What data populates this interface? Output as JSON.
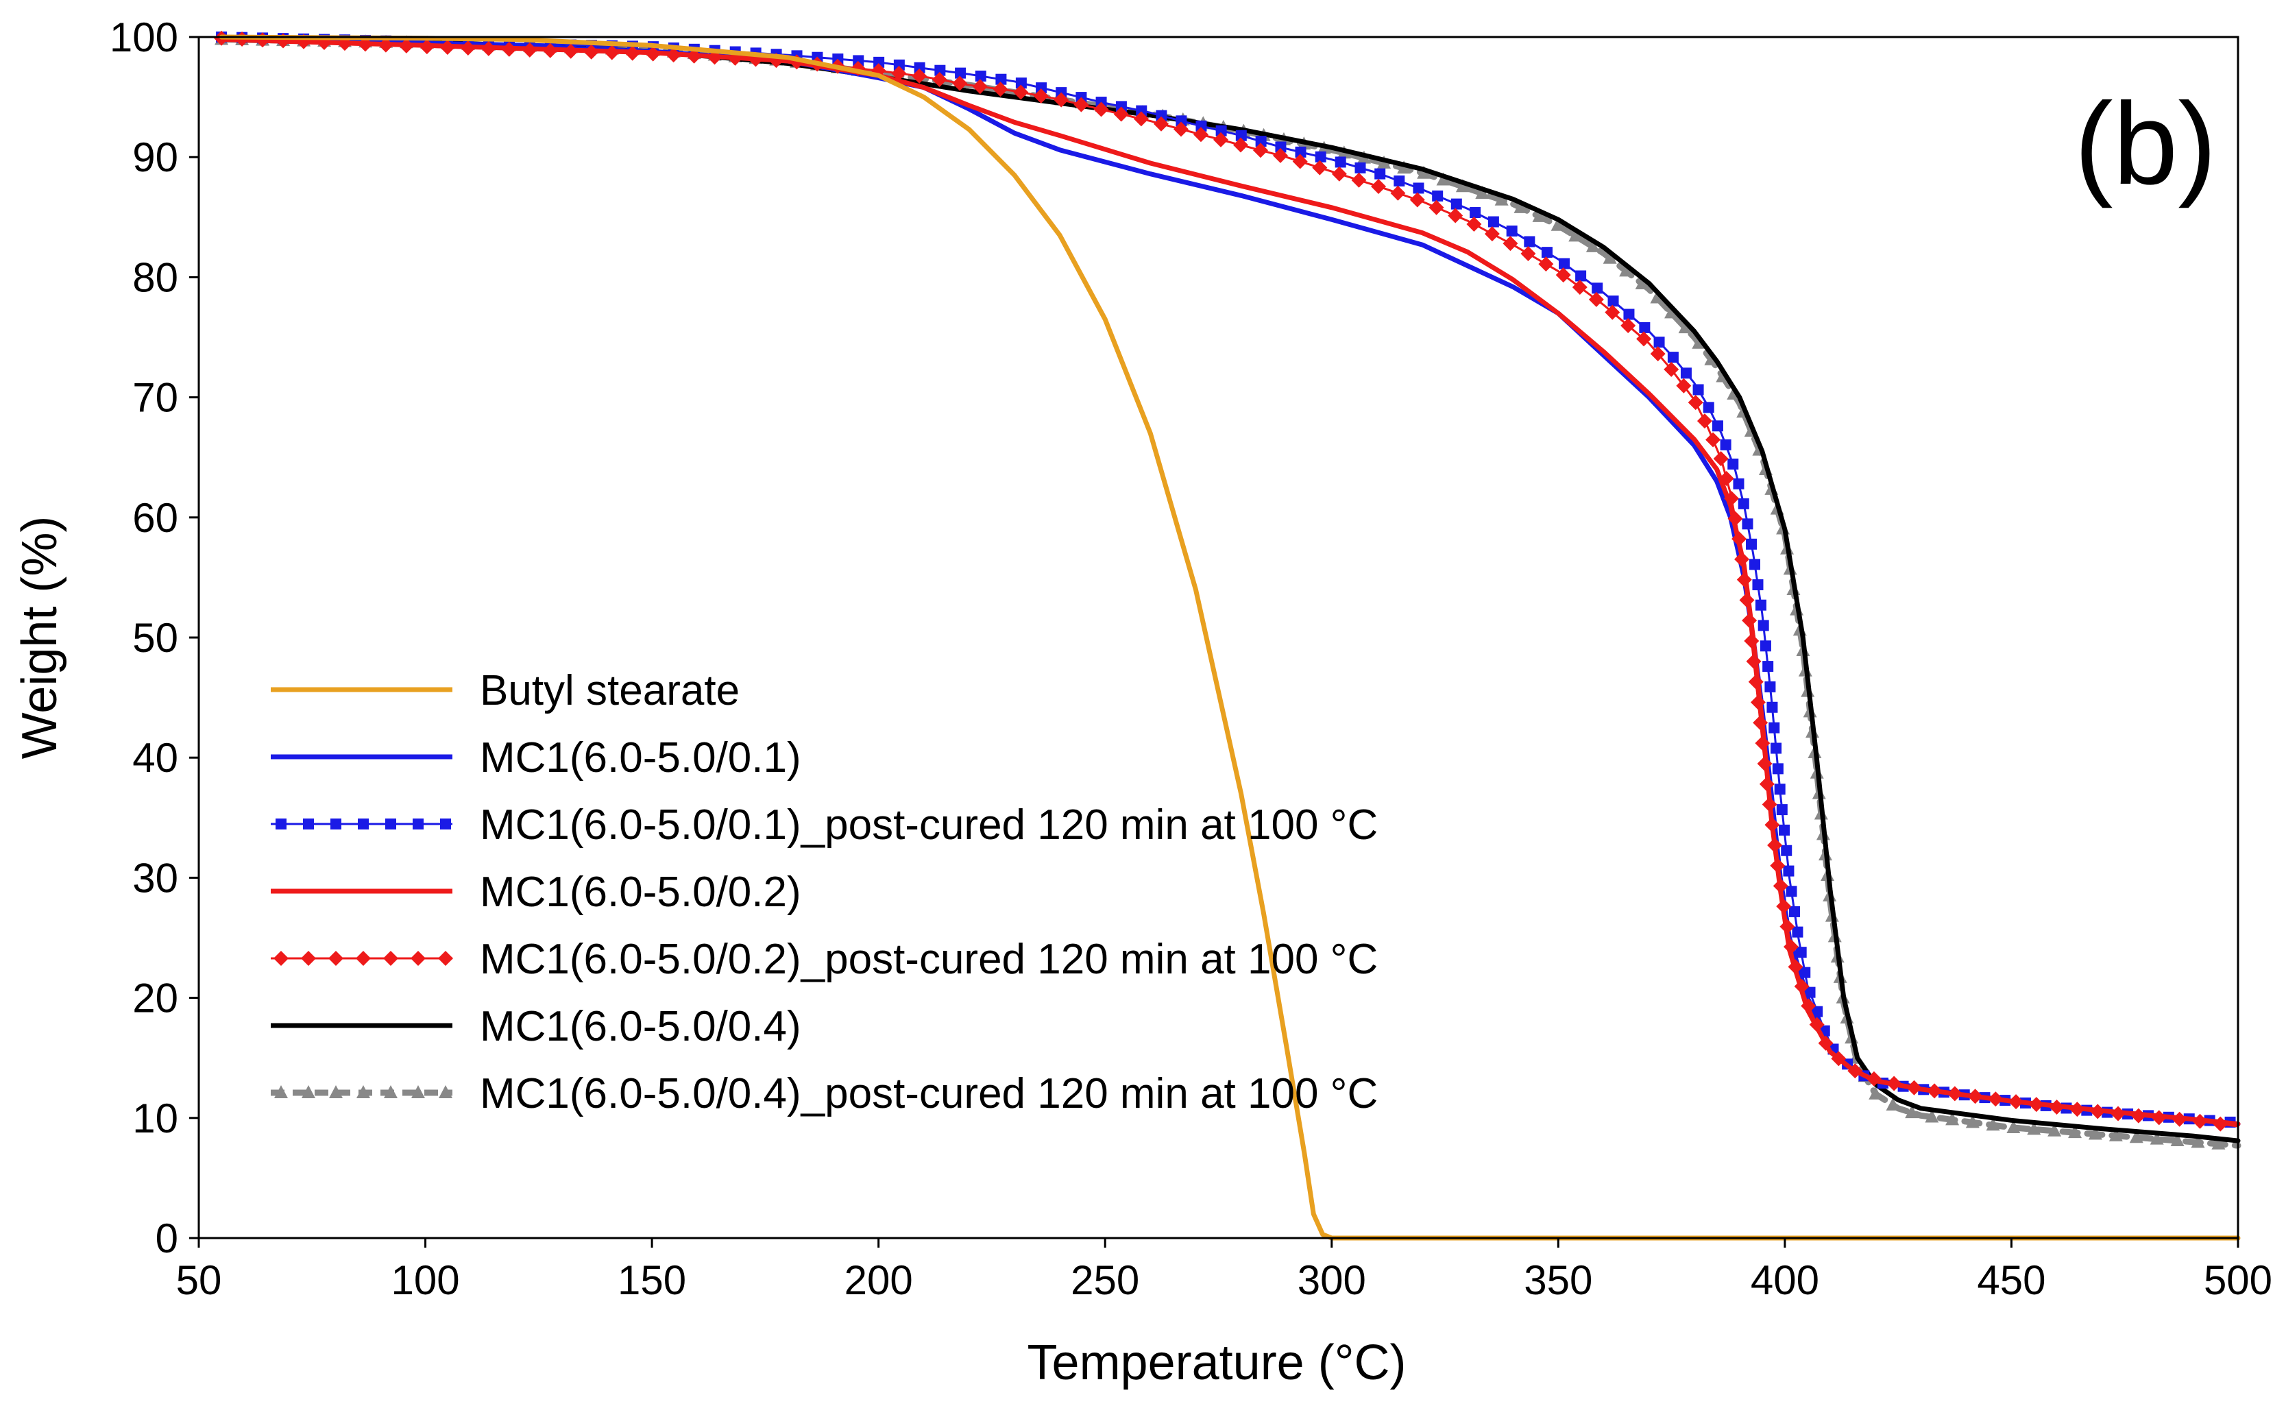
{
  "chart_data": {
    "type": "line",
    "title": "",
    "panel_label": "(b)",
    "xlabel": "Temperature (°C)",
    "ylabel": "Weight (%)",
    "xlim": [
      50,
      500
    ],
    "ylim": [
      0,
      100
    ],
    "xticks": [
      50,
      100,
      150,
      200,
      250,
      300,
      350,
      400,
      450,
      500
    ],
    "yticks": [
      0,
      10,
      20,
      30,
      40,
      50,
      60,
      70,
      80,
      90,
      100
    ],
    "grid": false,
    "legend_position": "lower-left",
    "series": [
      {
        "name": "Butyl stearate",
        "color": "#E8A020",
        "style": "solid",
        "marker": "none",
        "points": [
          [
            55,
            100
          ],
          [
            100,
            99.9
          ],
          [
            120,
            99.8
          ],
          [
            150,
            99.3
          ],
          [
            180,
            98.3
          ],
          [
            200,
            96.8
          ],
          [
            210,
            95
          ],
          [
            220,
            92.3
          ],
          [
            230,
            88.5
          ],
          [
            240,
            83.5
          ],
          [
            250,
            76.5
          ],
          [
            260,
            67
          ],
          [
            270,
            54
          ],
          [
            280,
            37
          ],
          [
            285,
            27
          ],
          [
            290,
            16
          ],
          [
            294,
            7
          ],
          [
            296,
            2
          ],
          [
            298,
            0.3
          ],
          [
            300,
            0
          ],
          [
            350,
            0
          ],
          [
            400,
            0
          ],
          [
            450,
            0
          ],
          [
            500,
            0
          ]
        ]
      },
      {
        "name": "MC1(6.0-5.0/0.1)",
        "color": "#1A1AE6",
        "style": "solid",
        "marker": "none",
        "points": [
          [
            55,
            99.9
          ],
          [
            100,
            99.5
          ],
          [
            150,
            98.8
          ],
          [
            180,
            98
          ],
          [
            200,
            96.6
          ],
          [
            210,
            95.8
          ],
          [
            220,
            94
          ],
          [
            230,
            92
          ],
          [
            240,
            90.6
          ],
          [
            260,
            88.6
          ],
          [
            280,
            86.8
          ],
          [
            300,
            84.8
          ],
          [
            320,
            82.7
          ],
          [
            340,
            79.2
          ],
          [
            350,
            77
          ],
          [
            360,
            73.5
          ],
          [
            370,
            70
          ],
          [
            380,
            66
          ],
          [
            385,
            63
          ],
          [
            388,
            60
          ],
          [
            391,
            55
          ],
          [
            393,
            50
          ],
          [
            395,
            44
          ],
          [
            397,
            37
          ],
          [
            399,
            30
          ],
          [
            401,
            25
          ],
          [
            405,
            20
          ],
          [
            410,
            16
          ],
          [
            415,
            14
          ],
          [
            420,
            13.2
          ],
          [
            430,
            12.5
          ],
          [
            450,
            11.4
          ],
          [
            470,
            10.6
          ],
          [
            490,
            9.9
          ],
          [
            500,
            9.5
          ]
        ]
      },
      {
        "name": "MC1(6.0-5.0/0.1)_post-cured 120 min at 100 °C",
        "color": "#1A1AE6",
        "style": "thin",
        "marker": "square",
        "points": [
          [
            55,
            100
          ],
          [
            100,
            99.6
          ],
          [
            150,
            99.2
          ],
          [
            180,
            98.5
          ],
          [
            200,
            97.9
          ],
          [
            210,
            97.4
          ],
          [
            220,
            96.9
          ],
          [
            230,
            96.3
          ],
          [
            240,
            95.4
          ],
          [
            250,
            94.5
          ],
          [
            260,
            93.7
          ],
          [
            270,
            92.7
          ],
          [
            280,
            91.8
          ],
          [
            290,
            90.7
          ],
          [
            300,
            89.8
          ],
          [
            310,
            88.7
          ],
          [
            320,
            87.3
          ],
          [
            330,
            85.7
          ],
          [
            340,
            83.8
          ],
          [
            350,
            81.5
          ],
          [
            360,
            78.7
          ],
          [
            370,
            75.5
          ],
          [
            375,
            73.5
          ],
          [
            380,
            71.2
          ],
          [
            383,
            69.3
          ],
          [
            386,
            67
          ],
          [
            389,
            64
          ],
          [
            391,
            61
          ],
          [
            393,
            57
          ],
          [
            395,
            52
          ],
          [
            397,
            45
          ],
          [
            399,
            37
          ],
          [
            401,
            30
          ],
          [
            403,
            25
          ],
          [
            405,
            21
          ],
          [
            408,
            18
          ],
          [
            410,
            16
          ],
          [
            415,
            14
          ],
          [
            420,
            13
          ],
          [
            430,
            12.4
          ],
          [
            440,
            11.9
          ],
          [
            450,
            11.4
          ],
          [
            460,
            10.9
          ],
          [
            470,
            10.5
          ],
          [
            480,
            10.2
          ],
          [
            490,
            9.9
          ],
          [
            500,
            9.6
          ]
        ]
      },
      {
        "name": "MC1(6.0-5.0/0.2)",
        "color": "#EE1A1A",
        "style": "solid",
        "marker": "none",
        "points": [
          [
            55,
            99.8
          ],
          [
            100,
            99.3
          ],
          [
            150,
            98.7
          ],
          [
            180,
            98
          ],
          [
            200,
            96.8
          ],
          [
            210,
            95.8
          ],
          [
            220,
            94.3
          ],
          [
            230,
            92.9
          ],
          [
            240,
            91.8
          ],
          [
            260,
            89.5
          ],
          [
            280,
            87.6
          ],
          [
            300,
            85.8
          ],
          [
            320,
            83.7
          ],
          [
            330,
            82.1
          ],
          [
            340,
            79.8
          ],
          [
            350,
            77
          ],
          [
            360,
            73.8
          ],
          [
            370,
            70.3
          ],
          [
            380,
            66.5
          ],
          [
            385,
            64
          ],
          [
            388,
            61
          ],
          [
            391,
            56
          ],
          [
            393,
            50
          ],
          [
            395,
            43
          ],
          [
            397,
            35
          ],
          [
            399,
            29
          ],
          [
            401,
            24
          ],
          [
            405,
            19
          ],
          [
            410,
            15.5
          ],
          [
            415,
            14
          ],
          [
            420,
            13.1
          ],
          [
            430,
            12.4
          ],
          [
            450,
            11.4
          ],
          [
            470,
            10.6
          ],
          [
            490,
            9.9
          ],
          [
            500,
            9.5
          ]
        ]
      },
      {
        "name": "MC1(6.0-5.0/0.2)_post-cured 120 min at 100 °C",
        "color": "#EE1A1A",
        "style": "thin",
        "marker": "diamond",
        "points": [
          [
            55,
            99.9
          ],
          [
            100,
            99.2
          ],
          [
            150,
            98.6
          ],
          [
            180,
            98
          ],
          [
            200,
            97.2
          ],
          [
            210,
            96.7
          ],
          [
            220,
            96
          ],
          [
            230,
            95.5
          ],
          [
            240,
            94.8
          ],
          [
            250,
            93.9
          ],
          [
            260,
            93
          ],
          [
            270,
            92
          ],
          [
            280,
            91
          ],
          [
            290,
            90
          ],
          [
            300,
            88.8
          ],
          [
            310,
            87.6
          ],
          [
            320,
            86.3
          ],
          [
            330,
            84.7
          ],
          [
            340,
            82.7
          ],
          [
            350,
            80.5
          ],
          [
            360,
            77.7
          ],
          [
            370,
            74.5
          ],
          [
            375,
            72.3
          ],
          [
            380,
            69.8
          ],
          [
            383,
            67.5
          ],
          [
            386,
            64.8
          ],
          [
            388,
            62
          ],
          [
            390,
            58
          ],
          [
            392,
            52
          ],
          [
            394,
            45
          ],
          [
            396,
            38
          ],
          [
            398,
            32
          ],
          [
            400,
            27
          ],
          [
            402,
            23
          ],
          [
            405,
            19.5
          ],
          [
            408,
            17
          ],
          [
            410,
            15.5
          ],
          [
            415,
            14
          ],
          [
            420,
            13.2
          ],
          [
            430,
            12.4
          ],
          [
            440,
            11.9
          ],
          [
            450,
            11.4
          ],
          [
            460,
            10.9
          ],
          [
            470,
            10.5
          ],
          [
            480,
            10.1
          ],
          [
            490,
            9.8
          ],
          [
            500,
            9.3
          ]
        ]
      },
      {
        "name": "MC1(6.0-5.0/0.4)",
        "color": "#000000",
        "style": "solid",
        "marker": "none",
        "points": [
          [
            55,
            99.9
          ],
          [
            100,
            99.6
          ],
          [
            150,
            98.8
          ],
          [
            180,
            97.8
          ],
          [
            200,
            96.7
          ],
          [
            220,
            95.5
          ],
          [
            240,
            94.5
          ],
          [
            260,
            93.5
          ],
          [
            280,
            92.3
          ],
          [
            300,
            90.8
          ],
          [
            320,
            89
          ],
          [
            340,
            86.5
          ],
          [
            350,
            84.8
          ],
          [
            360,
            82.5
          ],
          [
            370,
            79.5
          ],
          [
            380,
            75.5
          ],
          [
            385,
            73
          ],
          [
            390,
            70
          ],
          [
            395,
            65.5
          ],
          [
            400,
            59
          ],
          [
            404,
            50
          ],
          [
            407,
            40
          ],
          [
            410,
            29
          ],
          [
            413,
            20
          ],
          [
            416,
            15
          ],
          [
            420,
            12.8
          ],
          [
            425,
            11.5
          ],
          [
            430,
            10.8
          ],
          [
            450,
            9.8
          ],
          [
            470,
            9.1
          ],
          [
            490,
            8.5
          ],
          [
            500,
            8.1
          ]
        ]
      },
      {
        "name": "MC1(6.0-5.0/0.4)_post-cured 120 min at 100 °C",
        "color": "#888888",
        "style": "dashed",
        "marker": "triangle",
        "points": [
          [
            55,
            99.8
          ],
          [
            100,
            99.5
          ],
          [
            150,
            98.9
          ],
          [
            180,
            98
          ],
          [
            200,
            97
          ],
          [
            220,
            96
          ],
          [
            240,
            94.8
          ],
          [
            260,
            93.6
          ],
          [
            280,
            92.2
          ],
          [
            300,
            90.6
          ],
          [
            320,
            88.7
          ],
          [
            340,
            86.1
          ],
          [
            350,
            84.3
          ],
          [
            360,
            82
          ],
          [
            370,
            79
          ],
          [
            380,
            75
          ],
          [
            385,
            72.5
          ],
          [
            390,
            69.5
          ],
          [
            395,
            65
          ],
          [
            400,
            58.5
          ],
          [
            404,
            49
          ],
          [
            407,
            39
          ],
          [
            410,
            28
          ],
          [
            413,
            19.5
          ],
          [
            416,
            14.5
          ],
          [
            420,
            12
          ],
          [
            425,
            10.8
          ],
          [
            430,
            10.2
          ],
          [
            450,
            9.2
          ],
          [
            470,
            8.6
          ],
          [
            490,
            8
          ],
          [
            500,
            7.7
          ]
        ]
      }
    ]
  }
}
